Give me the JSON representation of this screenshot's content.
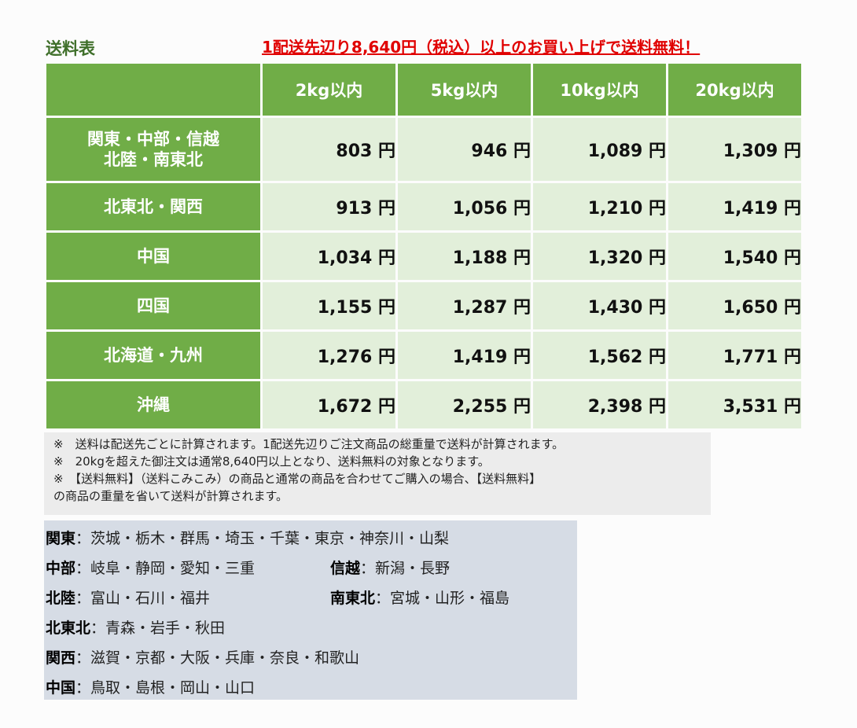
{
  "title": "送料表",
  "promo": "1配送先辺り8,640円（税込）以上のお買い上げで送料無料！",
  "table": {
    "headers": [
      "2kg以内",
      "5kg以内",
      "10kg以内",
      "20kg以内"
    ],
    "rows": [
      {
        "region_line1": "関東・中部・信越",
        "region_line2": "北陸・南東北",
        "prices": [
          "803 円",
          "946 円",
          "1,089 円",
          "1,309 円"
        ]
      },
      {
        "region_line1": "北東北・関西",
        "prices": [
          "913 円",
          "1,056 円",
          "1,210 円",
          "1,419 円"
        ]
      },
      {
        "region_line1": "中国",
        "prices": [
          "1,034 円",
          "1,188 円",
          "1,320 円",
          "1,540 円"
        ]
      },
      {
        "region_line1": "四国",
        "prices": [
          "1,155 円",
          "1,287 円",
          "1,430 円",
          "1,650 円"
        ]
      },
      {
        "region_line1": "北海道・九州",
        "prices": [
          "1,276 円",
          "1,419 円",
          "1,562 円",
          "1,771 円"
        ]
      },
      {
        "region_line1": "沖縄",
        "prices": [
          "1,672 円",
          "2,255 円",
          "2,398 円",
          "3,531 円"
        ]
      }
    ]
  },
  "notes": [
    "※　送料は配送先ごとに計算されます。1配送先辺りご注文商品の総重量で送料が計算されます。",
    "※　20kgを超えた御注文は通常8,640円以上となり、送料無料の対象となります。",
    "※　【送料無料】（送料こみこみ）の商品と通常の商品を合わせてご購入の場合、【送料無料】",
    "の商品の重量を省いて送料が計算されます。"
  ],
  "regions": {
    "kanto": {
      "name": "関東",
      "prefs": "：茨城・栃木・群馬・埼玉・千葉・東京・神奈川・山梨"
    },
    "chubu": {
      "name": "中部",
      "prefs": "：岐阜・静岡・愛知・三重"
    },
    "shinetsu": {
      "name": "信越",
      "prefs": "：新潟・長野"
    },
    "hokuriku": {
      "name": "北陸",
      "prefs": "：富山・石川・福井"
    },
    "minami_tohoku": {
      "name": "南東北",
      "prefs": "：宮城・山形・福島"
    },
    "kita_tohoku": {
      "name": "北東北",
      "prefs": "：青森・岩手・秋田"
    },
    "kansai": {
      "name": "関西",
      "prefs": "：滋賀・京都・大阪・兵庫・奈良・和歌山"
    },
    "chugoku": {
      "name": "中国",
      "prefs": "：鳥取・島根・岡山・山口"
    }
  },
  "colors": {
    "header_green": "#70ad47",
    "cell_green": "#e2efda",
    "promo_red": "#e00000",
    "region_bg": "#d6dce5"
  }
}
